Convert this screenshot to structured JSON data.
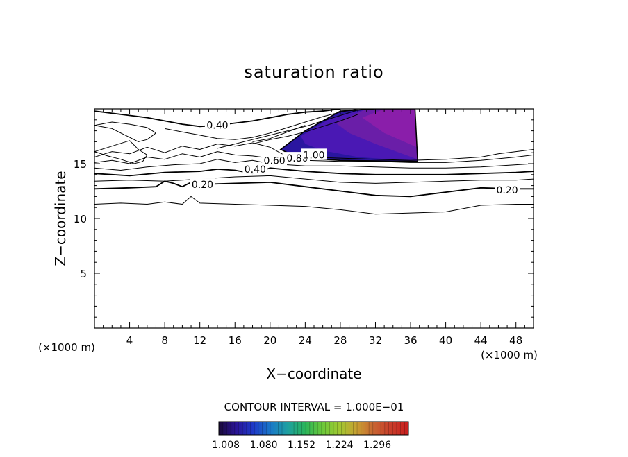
{
  "chart_data": {
    "type": "contour",
    "title": "saturation ratio",
    "xlabel": "X−coordinate",
    "ylabel": "Z−coordinate",
    "x_unit": "(×1000 m)",
    "y_unit": "(×1000 m)",
    "xlim": [
      0,
      50
    ],
    "ylim": [
      0,
      20
    ],
    "x_ticks": [
      4,
      8,
      12,
      16,
      20,
      24,
      28,
      32,
      36,
      40,
      44,
      48
    ],
    "y_ticks": [
      5,
      10,
      15
    ],
    "contour_interval_text": "CONTOUR INTERVAL = 1.000E−01",
    "contour_labels": [
      {
        "text": "0.40",
        "x": 14.0,
        "y": 18.5
      },
      {
        "text": "0.20",
        "x": 12.3,
        "y": 13.1
      },
      {
        "text": "0.40",
        "x": 18.3,
        "y": 14.5
      },
      {
        "text": "0.60",
        "x": 20.5,
        "y": 15.3
      },
      {
        "text": "0.80",
        "x": 23.1,
        "y": 15.5
      },
      {
        "text": "1.00",
        "x": 25.0,
        "y": 15.8
      },
      {
        "text": "0.20",
        "x": 47.0,
        "y": 12.6
      }
    ],
    "contour_lines": [
      {
        "level": 0.1,
        "x": [
          0,
          3,
          6,
          8,
          10,
          11,
          12,
          16,
          20,
          24,
          28,
          32,
          36,
          40,
          44,
          48,
          50
        ],
        "y": [
          11.3,
          11.4,
          11.3,
          11.5,
          11.3,
          12.0,
          11.4,
          11.3,
          11.2,
          11.1,
          10.8,
          10.4,
          10.5,
          10.6,
          11.2,
          11.3,
          11.3
        ]
      },
      {
        "level": 0.2,
        "x": [
          0,
          4,
          7,
          8,
          9,
          10,
          11,
          12,
          16,
          20,
          24,
          28,
          32,
          36,
          40,
          44,
          48,
          50
        ],
        "y": [
          12.7,
          12.8,
          12.9,
          13.4,
          13.2,
          12.9,
          13.3,
          13.1,
          13.2,
          13.3,
          12.9,
          12.5,
          12.1,
          12.0,
          12.4,
          12.8,
          12.7,
          12.7
        ]
      },
      {
        "level": 0.3,
        "x": [
          0,
          4,
          8,
          12,
          16,
          20,
          24,
          28,
          32,
          36,
          40,
          44,
          48,
          50
        ],
        "y": [
          13.4,
          13.5,
          13.4,
          13.6,
          13.8,
          13.9,
          13.6,
          13.3,
          13.2,
          13.3,
          13.4,
          13.5,
          13.5,
          13.6
        ]
      },
      {
        "level": 0.4,
        "x": [
          0,
          4,
          8,
          12,
          14,
          16,
          18,
          20,
          24,
          28,
          32,
          36,
          40,
          44,
          48,
          50
        ],
        "y": [
          14.1,
          13.9,
          14.2,
          14.3,
          14.5,
          14.4,
          14.1,
          14.6,
          14.3,
          14.1,
          14.0,
          14.0,
          14.0,
          14.1,
          14.2,
          14.3
        ]
      },
      {
        "level": 0.5,
        "x": [
          0,
          3,
          6,
          9,
          12,
          14,
          16,
          18,
          20,
          24,
          28,
          32,
          36,
          40,
          44,
          48,
          50
        ],
        "y": [
          14.6,
          14.4,
          14.7,
          14.9,
          15.0,
          15.4,
          15.1,
          15.3,
          15.0,
          14.8,
          14.8,
          14.7,
          14.6,
          14.6,
          14.7,
          14.9,
          15.0
        ]
      },
      {
        "level": 0.6,
        "x": [
          0,
          2,
          4,
          6,
          8,
          10,
          12,
          14,
          16,
          18,
          20,
          24,
          28,
          32,
          36,
          40,
          44,
          48,
          50
        ],
        "y": [
          15.1,
          15.3,
          15.0,
          15.6,
          15.4,
          15.9,
          15.6,
          16.1,
          15.8,
          15.7,
          15.5,
          15.3,
          15.2,
          15.2,
          15.1,
          15.1,
          15.3,
          15.6,
          15.8
        ]
      },
      {
        "level": 0.7,
        "x": [
          0,
          2,
          4,
          6,
          8,
          10,
          12,
          14,
          16,
          18,
          20,
          22,
          24,
          28,
          32,
          36,
          40,
          44,
          46,
          48,
          50
        ],
        "y": [
          15.6,
          16.1,
          15.9,
          16.5,
          16.0,
          16.6,
          16.3,
          16.8,
          16.6,
          16.9,
          16.5,
          15.6,
          15.6,
          15.5,
          15.4,
          15.3,
          15.4,
          15.6,
          15.9,
          16.1,
          16.3
        ]
      },
      {
        "level": 0.3,
        "x": [
          0,
          2,
          4,
          5,
          6,
          5.5,
          4.5,
          3,
          1.5,
          0
        ],
        "y": [
          16.1,
          16.6,
          17.1,
          16.3,
          15.8,
          15.2,
          15.0,
          15.4,
          15.7,
          16.1
        ]
      },
      {
        "level": 0.4,
        "x": [
          0,
          3,
          6,
          8,
          10,
          12,
          14,
          16,
          18,
          20,
          22,
          24,
          26,
          28
        ],
        "y": [
          19.8,
          19.5,
          19.2,
          18.9,
          18.6,
          18.4,
          18.5,
          18.7,
          18.9,
          19.2,
          19.5,
          19.7,
          19.8,
          20.0
        ]
      },
      {
        "level": 0.5,
        "x": [
          0,
          2,
          3,
          4,
          5,
          6,
          7,
          6,
          4,
          2,
          0
        ],
        "y": [
          18.5,
          18.2,
          17.8,
          17.4,
          17.0,
          17.2,
          17.8,
          18.3,
          18.6,
          18.8,
          18.5
        ]
      },
      {
        "level": 0.6,
        "x": [
          8,
          10,
          12,
          14,
          16,
          18,
          20,
          22,
          24,
          26,
          28,
          30,
          32
        ],
        "y": [
          18.2,
          17.9,
          17.6,
          17.3,
          17.2,
          17.4,
          17.8,
          18.3,
          18.8,
          19.3,
          19.7,
          20.0,
          20.0
        ]
      },
      {
        "level": 0.7,
        "x": [
          14,
          16,
          18,
          20,
          22,
          24,
          26,
          28,
          30
        ],
        "y": [
          16.4,
          16.8,
          17.2,
          17.6,
          18.0,
          18.4,
          18.9,
          19.4,
          19.9
        ]
      },
      {
        "level": 0.8,
        "x": [
          18,
          20,
          22,
          24,
          26,
          28,
          30
        ],
        "y": [
          16.8,
          17.2,
          17.5,
          17.9,
          18.4,
          18.9,
          19.5
        ]
      },
      {
        "level": 0.9,
        "x": [
          18,
          20,
          21,
          22,
          23,
          24
        ],
        "y": [
          17.0,
          17.3,
          17.6,
          17.9,
          18.2,
          18.5
        ]
      }
    ],
    "filled_region": {
      "colorbar_range_text": "1.008 to 1.296",
      "shading": [
        {
          "value": 1.03,
          "polygon_x": [
            21.2,
            24,
            28,
            32,
            36.5,
            36.8,
            28,
            24,
            22.5
          ],
          "polygon_y": [
            16.3,
            18.0,
            19.8,
            20.0,
            20.0,
            15.2,
            15.3,
            15.5,
            15.8
          ]
        },
        {
          "value": 1.1,
          "polygon_x": [
            23.5,
            27,
            31,
            34,
            36.5,
            36.8,
            30,
            26,
            24
          ],
          "polygon_y": [
            17.5,
            19.2,
            20.0,
            20.0,
            20.0,
            15.2,
            15.6,
            16.2,
            16.8
          ]
        },
        {
          "value": 1.16,
          "polygon_x": [
            27.5,
            31,
            34,
            36.5,
            36.8,
            32,
            29
          ],
          "polygon_y": [
            18.7,
            20.0,
            20.0,
            20.0,
            15.4,
            16.8,
            17.8
          ]
        },
        {
          "value": 1.19,
          "polygon_x": [
            30.5,
            33,
            36.5,
            36.7,
            33
          ],
          "polygon_y": [
            19.2,
            20.0,
            20.0,
            16.5,
            17.8
          ]
        }
      ]
    },
    "colorbar": {
      "labels": [
        "1.008",
        "1.080",
        "1.152",
        "1.224",
        "1.296"
      ],
      "min": 1.008,
      "max": 1.296,
      "colors": [
        "#1a0a3a",
        "#2a1496",
        "#1e3ac8",
        "#1a78c8",
        "#1ea0a0",
        "#2ab45a",
        "#6ac83a",
        "#a0c832",
        "#c8a032",
        "#c86432",
        "#c83c2a",
        "#c81e1e"
      ]
    }
  }
}
